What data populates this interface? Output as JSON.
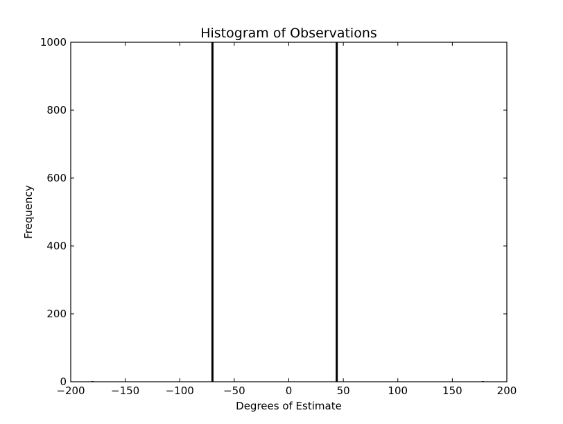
{
  "chart_data": {
    "type": "bar",
    "title": "Histogram of Observations",
    "xlabel": "Degrees of Estimate",
    "ylabel": "Frequency",
    "xlim": [
      -200,
      200
    ],
    "ylim": [
      0,
      1000
    ],
    "x_ticks": [
      -200,
      -150,
      -100,
      -50,
      0,
      50,
      100,
      150,
      200
    ],
    "y_ticks": [
      0,
      200,
      400,
      600,
      800,
      1000
    ],
    "x_tick_labels": [
      "−200",
      "−150",
      "−100",
      "−50",
      "0",
      "50",
      "100",
      "150",
      "200"
    ],
    "y_tick_labels": [
      "0",
      "200",
      "400",
      "600",
      "800",
      "1000"
    ],
    "grid": false,
    "legend": false,
    "bar_color": "#000000",
    "bars": [
      {
        "x": -180,
        "value": 2
      },
      {
        "x": -70,
        "value": 1000
      },
      {
        "x": 44,
        "value": 1000
      },
      {
        "x": 178,
        "value": 2
      }
    ]
  }
}
